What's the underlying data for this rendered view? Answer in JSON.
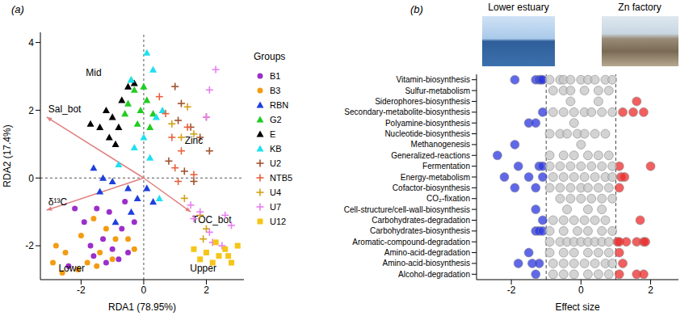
{
  "chart_data": [
    {
      "type": "scatter",
      "label": "(a)",
      "x_label": "RDA1 (78.95%)",
      "y_label": "RDA2 (17.4%)",
      "xlim": [
        -3.3,
        3.2
      ],
      "ylim": [
        -3,
        4.3
      ],
      "xticks": [
        -2,
        0,
        2
      ],
      "yticks": [
        -2,
        0,
        2,
        4
      ],
      "origin": [
        0,
        0
      ],
      "legend_title": "Groups",
      "series": [
        {
          "name": "B1",
          "color": "#9b2fc9",
          "marker": "circle",
          "points": [
            [
              -2.2,
              -0.9
            ],
            [
              -1.9,
              -1.3
            ],
            [
              -1.5,
              -0.9
            ],
            [
              -1.3,
              -1.8
            ],
            [
              -1.0,
              -2.1
            ],
            [
              -0.7,
              -1.5
            ],
            [
              -0.5,
              -2.2
            ],
            [
              -0.3,
              -1.3
            ],
            [
              -1.7,
              -2.0
            ],
            [
              -2.4,
              -2.6
            ],
            [
              -1.2,
              -2.5
            ],
            [
              -0.8,
              -2.4
            ],
            [
              -1.6,
              -2.3
            ],
            [
              -1.1,
              -1.0
            ],
            [
              -0.6,
              -0.7
            ]
          ]
        },
        {
          "name": "B3",
          "color": "#f39c12",
          "marker": "circle",
          "points": [
            [
              -2.8,
              -2.0
            ],
            [
              -2.9,
              -2.5
            ],
            [
              -2.5,
              -2.2
            ],
            [
              -2.1,
              -2.7
            ],
            [
              -1.8,
              -2.5
            ],
            [
              -1.5,
              -2.6
            ],
            [
              -1.4,
              -2.2
            ],
            [
              -2.0,
              -1.7
            ],
            [
              -1.6,
              -1.2
            ],
            [
              -1.2,
              -1.5
            ],
            [
              -0.9,
              -1.8
            ],
            [
              -0.5,
              -1.8
            ],
            [
              -0.3,
              -2.1
            ],
            [
              -2.6,
              -2.8
            ],
            [
              -1.0,
              -2.4
            ]
          ]
        },
        {
          "name": "RBN",
          "color": "#1f3fdc",
          "marker": "triangle",
          "points": [
            [
              -1.6,
              0.3
            ],
            [
              -1.3,
              0.0
            ],
            [
              -1.0,
              -0.1
            ],
            [
              -0.5,
              -0.3
            ],
            [
              -0.2,
              -0.6
            ],
            [
              0.3,
              -0.7
            ],
            [
              -0.9,
              -1.3
            ],
            [
              -0.4,
              -1.0
            ],
            [
              0.1,
              -0.3
            ],
            [
              -1.4,
              -0.4
            ]
          ]
        },
        {
          "name": "G2",
          "color": "#22cc22",
          "marker": "triangle",
          "points": [
            [
              -0.5,
              2.2
            ],
            [
              -0.3,
              2.6
            ],
            [
              -0.1,
              2.0
            ],
            [
              0.1,
              2.3
            ],
            [
              -0.6,
              1.9
            ],
            [
              0.3,
              1.9
            ],
            [
              -0.2,
              1.6
            ],
            [
              -0.4,
              2.9
            ],
            [
              0.0,
              2.7
            ],
            [
              0.2,
              1.5
            ]
          ]
        },
        {
          "name": "E",
          "color": "#000000",
          "marker": "triangle",
          "points": [
            [
              -1.7,
              1.6
            ],
            [
              -1.4,
              1.5
            ],
            [
              -1.1,
              1.2
            ],
            [
              -0.8,
              1.5
            ],
            [
              -0.5,
              2.7
            ],
            [
              -0.3,
              2.8
            ],
            [
              -1.2,
              2.0
            ],
            [
              -0.9,
              1.0
            ],
            [
              -1.0,
              1.8
            ],
            [
              -0.7,
              2.3
            ]
          ]
        },
        {
          "name": "KB",
          "color": "#1ee0f0",
          "marker": "triangle",
          "points": [
            [
              0.1,
              3.7
            ],
            [
              0.3,
              3.2
            ],
            [
              -0.4,
              2.9
            ],
            [
              0.0,
              1.2
            ],
            [
              0.4,
              1.8
            ],
            [
              -0.8,
              0.4
            ],
            [
              0.2,
              0.6
            ],
            [
              -0.3,
              0.9
            ],
            [
              0.6,
              2.0
            ],
            [
              0.5,
              -0.6
            ]
          ]
        },
        {
          "name": "U2",
          "color": "#a0522d",
          "marker": "plus",
          "points": [
            [
              1.0,
              2.7
            ],
            [
              1.2,
              2.2
            ],
            [
              1.5,
              1.5
            ],
            [
              1.8,
              1.2
            ],
            [
              2.1,
              0.8
            ],
            [
              1.3,
              0.2
            ],
            [
              1.6,
              -0.1
            ],
            [
              1.1,
              1.7
            ],
            [
              2.0,
              1.8
            ],
            [
              0.8,
              0.5
            ]
          ]
        },
        {
          "name": "NTB5",
          "color": "#e8603c",
          "marker": "plus",
          "points": [
            [
              1.1,
              -0.1
            ],
            [
              1.2,
              0.8
            ],
            [
              1.4,
              1.5
            ],
            [
              0.9,
              1.2
            ],
            [
              1.0,
              0.3
            ],
            [
              0.7,
              1.9
            ],
            [
              1.6,
              0.1
            ],
            [
              0.5,
              2.4
            ]
          ]
        },
        {
          "name": "U4",
          "color": "#d4a017",
          "marker": "plus",
          "points": [
            [
              1.4,
              2.1
            ],
            [
              1.6,
              1.3
            ],
            [
              1.8,
              -1.1
            ],
            [
              1.3,
              -0.6
            ],
            [
              1.9,
              -1.8
            ],
            [
              1.2,
              1.2
            ],
            [
              0.9,
              1.6
            ],
            [
              2.0,
              -1.5
            ]
          ]
        },
        {
          "name": "U7",
          "color": "#e87ef0",
          "marker": "plus",
          "points": [
            [
              2.3,
              3.2
            ],
            [
              2.1,
              2.6
            ],
            [
              2.0,
              1.8
            ],
            [
              1.5,
              -0.8
            ],
            [
              1.6,
              -1.2
            ],
            [
              1.8,
              -1.0
            ],
            [
              2.2,
              -1.9
            ],
            [
              2.5,
              -2.0
            ],
            [
              2.6,
              -1.1
            ],
            [
              2.8,
              -1.4
            ],
            [
              2.1,
              -1.6
            ]
          ]
        },
        {
          "name": "U12",
          "color": "#f5c518",
          "marker": "square",
          "points": [
            [
              1.6,
              -2.1
            ],
            [
              1.8,
              -2.4
            ],
            [
              2.0,
              -2.2
            ],
            [
              2.2,
              -2.5
            ],
            [
              2.4,
              -2.3
            ],
            [
              2.6,
              -2.1
            ],
            [
              2.8,
              -2.5
            ],
            [
              3.0,
              -2.0
            ],
            [
              2.3,
              -1.9
            ],
            [
              2.7,
              -2.3
            ]
          ]
        }
      ],
      "arrows": [
        {
          "label": "Sal_bot",
          "x": -3.1,
          "y": 1.8
        },
        {
          "label": "δ¹³C",
          "x": -3.1,
          "y": -0.95
        },
        {
          "label": "TOC_bot",
          "x": 1.5,
          "y": -1.0
        }
      ],
      "annotations": [
        {
          "text": "Mid",
          "x": -1.6,
          "y": 3.0
        },
        {
          "text": "Zinc",
          "x": 1.6,
          "y": 1.0
        },
        {
          "text": "Lower",
          "x": -2.3,
          "y": -2.75
        },
        {
          "text": "Upper",
          "x": 1.9,
          "y": -2.75
        }
      ]
    },
    {
      "type": "dot",
      "label": "(b)",
      "x_label": "Effect size",
      "xlim": [
        -3,
        2.8
      ],
      "xticks": [
        -2,
        0,
        2
      ],
      "thresholds": [
        -1,
        1
      ],
      "categories": [
        "Vitamin-biosynthesis",
        "Sulfur-metabolism",
        "Siderophores-biosynthesis",
        "Secondary-metabolite-biosynthesis",
        "Polyamine-biosynthesis",
        "Nucleotide-biosynthesis",
        "Methanogenesis",
        "Generalized-reactions",
        "Fermentation",
        "Energy-metabolism",
        "Cofactor-biosynthesis",
        "CO₂-fixation",
        "Cell-structure/cell-wall-biosynthesis",
        "Carbohydrates-degradation",
        "Carbohydrates-biosynthesis",
        "Aromatic-compound-degradation",
        "Amino-acid-degradation",
        "Amino-acid-biosynthesis",
        "Alcohol-degradation"
      ],
      "series": [
        {
          "name": "Lower estuary",
          "color": "#2b35e0",
          "values": [
            [
              -1.9,
              -1.3,
              -1.2,
              -1.15,
              -1.1
            ],
            [],
            [],
            [
              -1.1
            ],
            [
              -1.5,
              -1.3
            ],
            [],
            [
              -1.9
            ],
            [
              -2.4
            ],
            [
              -1.8,
              -1.2,
              -1.1
            ],
            [
              -2.2,
              -1.5,
              -1.1
            ],
            [
              -1.9,
              -1.3
            ],
            [],
            [
              -1.3
            ],
            [
              -1.1
            ],
            [
              -1.3,
              -1.2,
              -1.1
            ],
            [],
            [
              -1.5
            ],
            [
              -1.8,
              -1.4,
              -1.2
            ],
            [
              -1.3
            ]
          ]
        },
        {
          "name": "Zn factory",
          "color": "#ee2a2a",
          "values": [
            [],
            [],
            [
              1.6
            ],
            [
              1.2,
              1.5,
              1.8
            ],
            [],
            [],
            [],
            [],
            [
              1.1,
              2.0
            ],
            [
              1.15,
              1.25
            ],
            [
              1.1
            ],
            [],
            [],
            [
              1.7
            ],
            [],
            [
              1.05,
              1.1,
              1.3,
              1.6,
              1.8,
              1.85
            ],
            [
              1.1
            ],
            [
              1.2
            ],
            [
              1.1,
              1.6,
              1.8
            ]
          ]
        },
        {
          "color": "#c4c4c4",
          "values": [
            [
              -0.9,
              -0.6,
              -0.5,
              -0.3,
              0.0,
              0.2,
              0.4,
              0.7,
              0.9
            ],
            [
              -0.8,
              -0.5,
              -0.3,
              0.1,
              0.5,
              0.8
            ],
            [
              -0.3,
              0.5
            ],
            [
              -0.8,
              -0.5,
              -0.2,
              0.1,
              0.3,
              0.6,
              0.9
            ],
            [
              -0.2
            ],
            [
              -0.9,
              -0.6,
              -0.4,
              -0.1,
              0.1,
              0.4,
              0.7
            ],
            [
              0.0
            ],
            [
              -0.9,
              -0.5,
              -0.2,
              0.2,
              0.5,
              0.8
            ],
            [
              -0.9,
              -0.6,
              -0.3,
              0.0,
              0.3,
              0.6,
              0.9
            ],
            [
              -0.8,
              -0.5,
              -0.2,
              0.1,
              0.4,
              0.7,
              0.9
            ],
            [
              -0.9,
              -0.6,
              -0.3,
              0.0,
              0.2,
              0.5,
              0.8
            ],
            [
              -0.6,
              -0.3,
              0.0,
              0.3,
              0.6,
              0.9
            ],
            [
              -0.4,
              0.2,
              0.6
            ],
            [
              -0.8,
              -0.5,
              -0.2,
              0.1,
              0.4,
              0.7
            ],
            [
              -0.9,
              -0.5,
              -0.1,
              0.2,
              0.6,
              0.9
            ],
            [
              -0.9,
              -0.6,
              -0.4,
              -0.2,
              0.0,
              0.2,
              0.4,
              0.6,
              0.8
            ],
            [
              -0.9,
              -0.5,
              -0.2,
              0.2,
              0.5,
              0.8
            ],
            [
              -0.8,
              -0.5,
              -0.2,
              0.1,
              0.4,
              0.7,
              0.9
            ],
            [
              -0.8,
              -0.5,
              -0.2,
              0.2,
              0.5,
              0.8
            ]
          ]
        }
      ]
    }
  ]
}
